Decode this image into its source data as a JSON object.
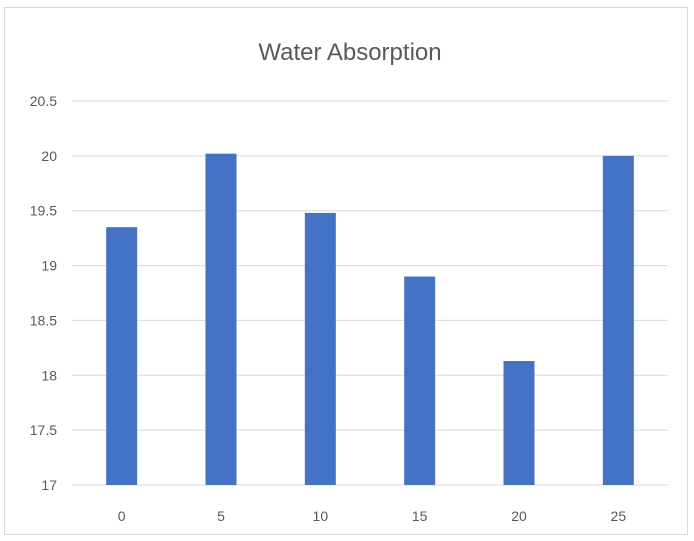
{
  "chart_data": {
    "type": "bar",
    "title": "Water Absorption",
    "xlabel": "",
    "ylabel": "",
    "categories": [
      "0",
      "5",
      "10",
      "15",
      "20",
      "25"
    ],
    "values": [
      19.35,
      20.02,
      19.48,
      18.9,
      18.13,
      20.0
    ],
    "ylim": [
      17,
      20.5
    ],
    "y_ticks": [
      "17",
      "17.5",
      "18",
      "18.5",
      "19",
      "19.5",
      "20",
      "20.5"
    ],
    "grid": true,
    "legend": "none",
    "bar_color": "#4472c4",
    "gridline_color": "#d9d9d9"
  }
}
